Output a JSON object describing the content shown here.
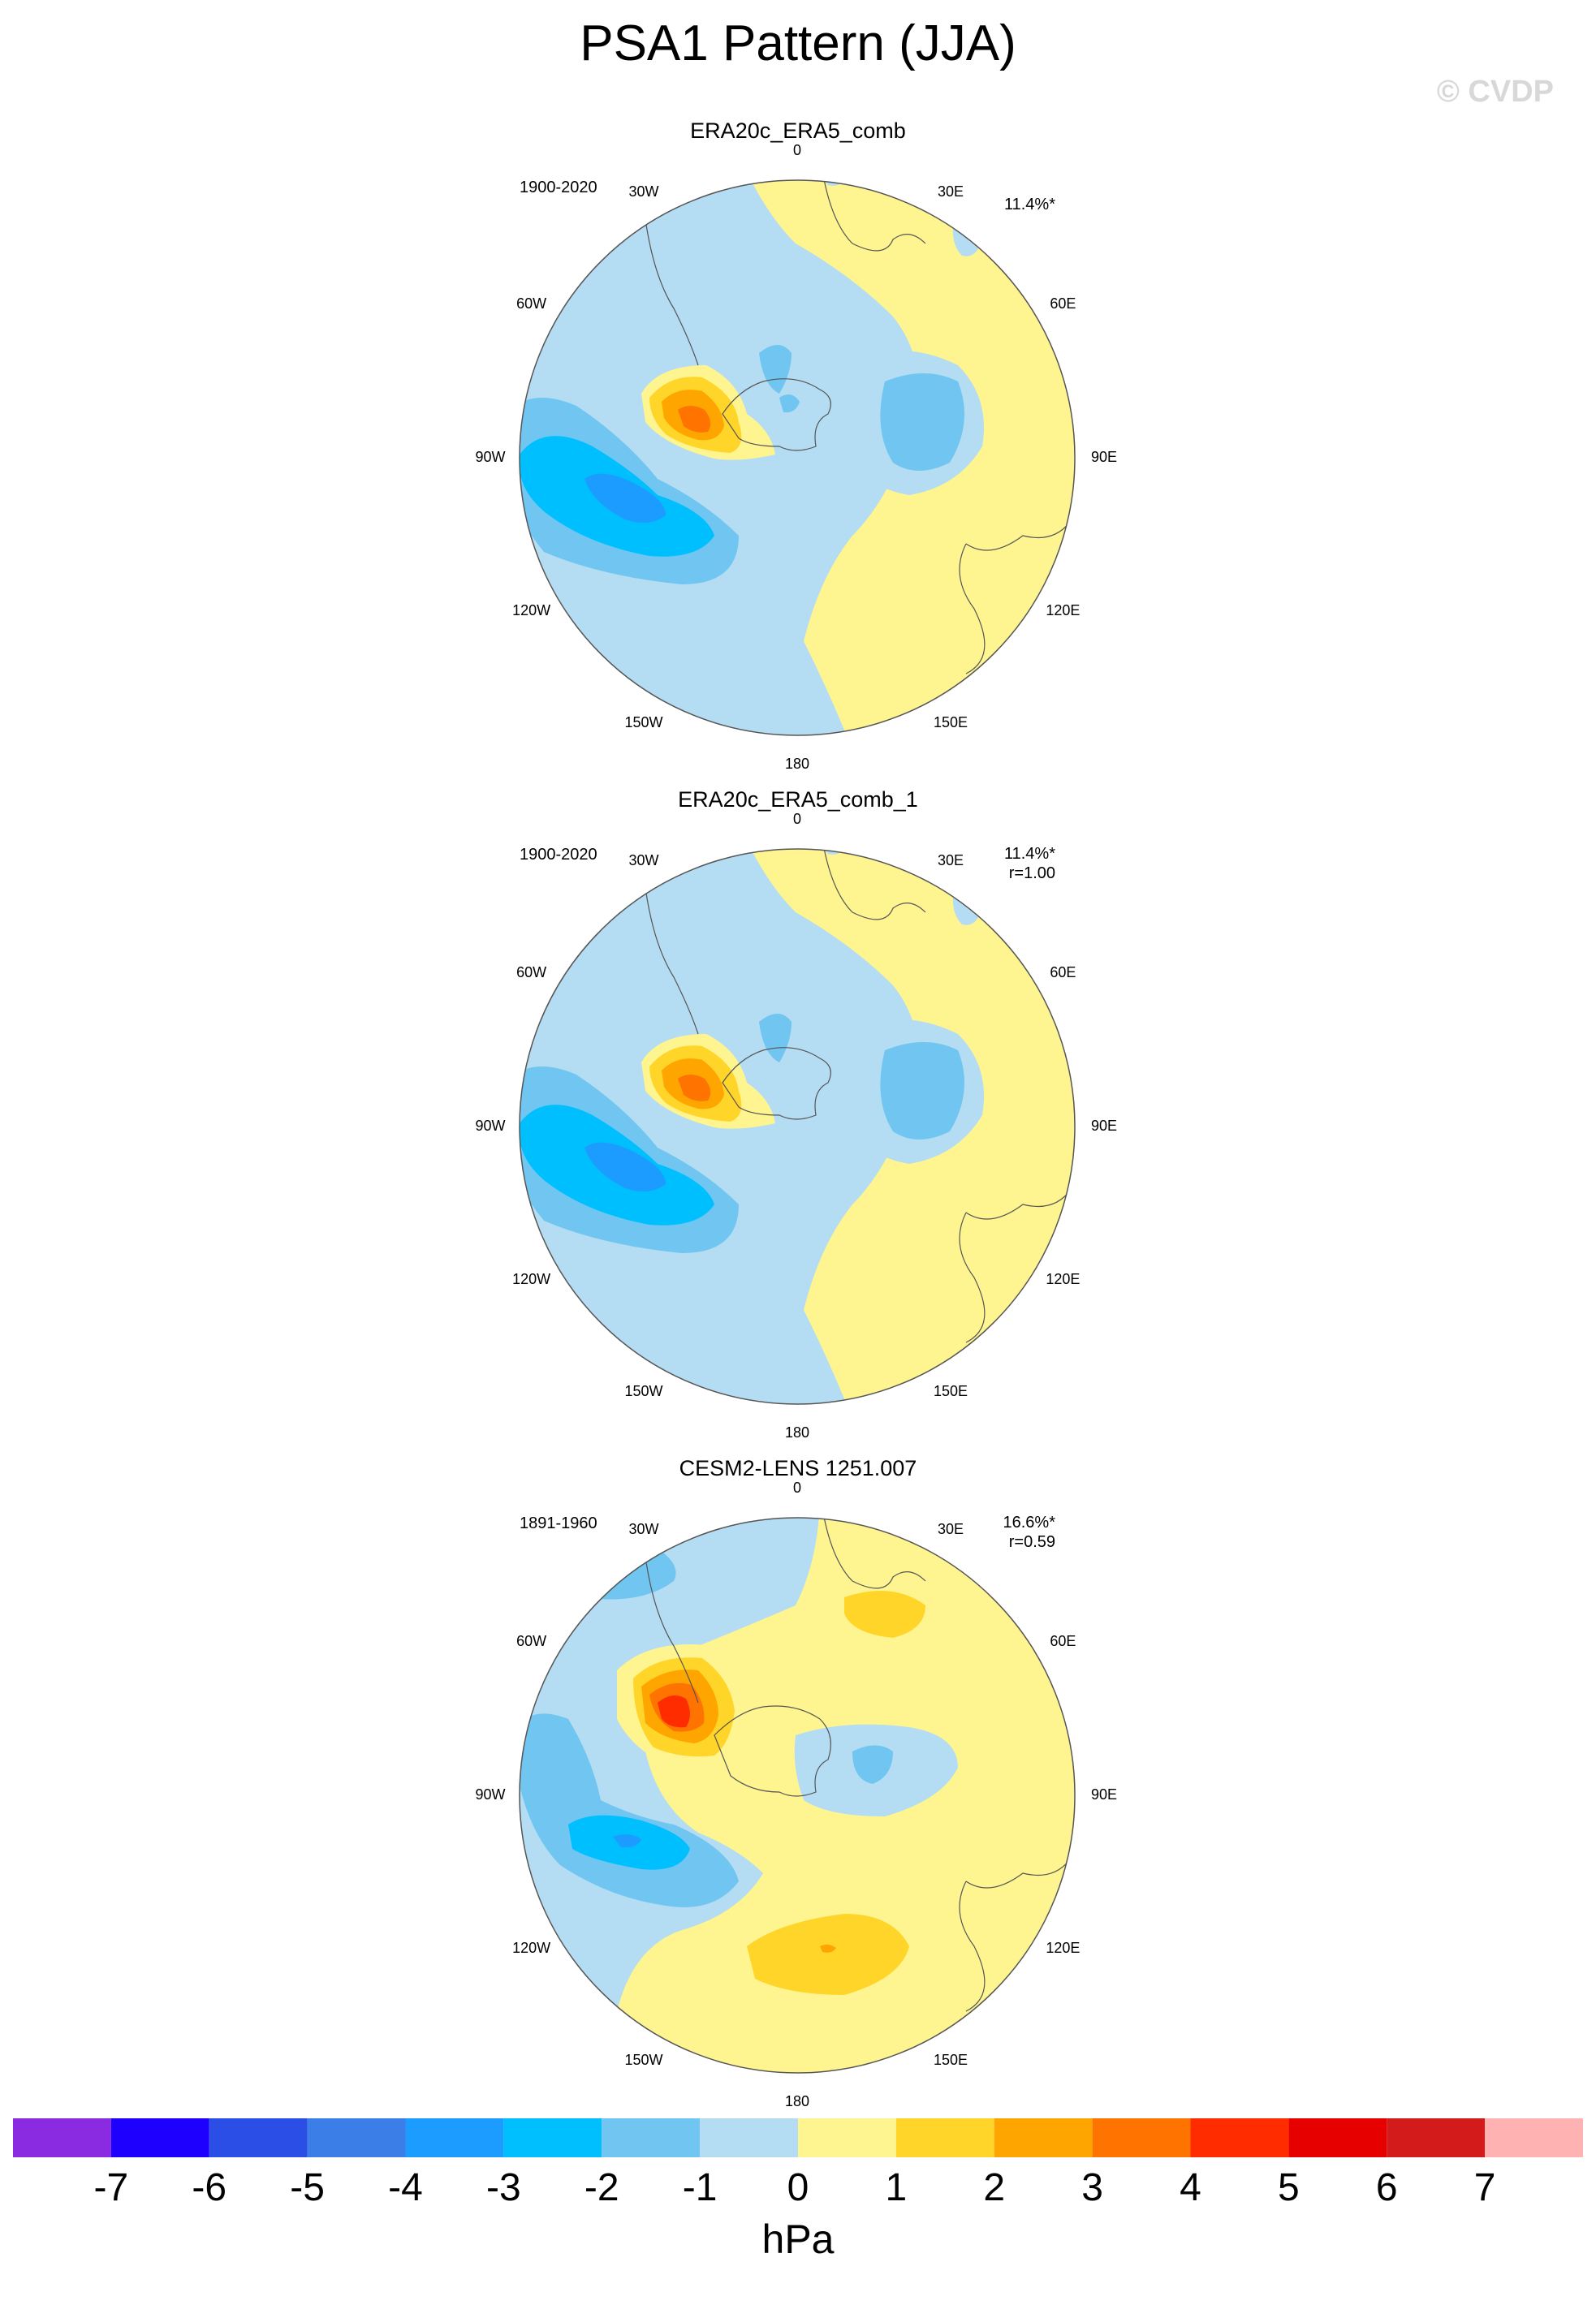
{
  "title": "PSA1 Pattern (JJA)",
  "copyright": "© CVDP",
  "panels": [
    {
      "title": "ERA20c_ERA5_comb",
      "period": "1900-2020",
      "pct": "11.4%*",
      "r": ""
    },
    {
      "title": "ERA20c_ERA5_comb_1",
      "period": "1900-2020",
      "pct": "11.4%*",
      "r": "r=1.00"
    },
    {
      "title": "CESM2-LENS 1251.007",
      "period": "1891-1960",
      "pct": "16.6%*",
      "r": "r=0.59"
    }
  ],
  "lon_labels": [
    "0",
    "30E",
    "60E",
    "90E",
    "120E",
    "150E",
    "180",
    "150W",
    "120W",
    "90W",
    "60W",
    "30W"
  ],
  "colorbar": {
    "units": "hPa",
    "labels": [
      "-7",
      "-6",
      "-5",
      "-4",
      "-3",
      "-2",
      "-1",
      "0",
      "1",
      "2",
      "3",
      "4",
      "5",
      "6",
      "7"
    ],
    "colors": [
      "#8a2be2",
      "#1e00ff",
      "#2b4ee6",
      "#3c7ee8",
      "#1c9cff",
      "#00bfff",
      "#70c6f0",
      "#b4dcf2",
      "#fff590",
      "#ffd52a",
      "#ffa500",
      "#ff7300",
      "#ff2c00",
      "#e60000",
      "#d41b1b",
      "#ffb2b2"
    ]
  },
  "fill_colors": {
    "land_bg_pos": "#fff590",
    "neg1": "#b4dcf2",
    "neg2": "#70c6f0",
    "neg3": "#00bfff",
    "neg4": "#1c9cff",
    "pos1": "#fff590",
    "pos2": "#ffd52a",
    "pos3": "#ffa500",
    "pos4": "#ff7300",
    "pos5": "#ff2c00"
  }
}
